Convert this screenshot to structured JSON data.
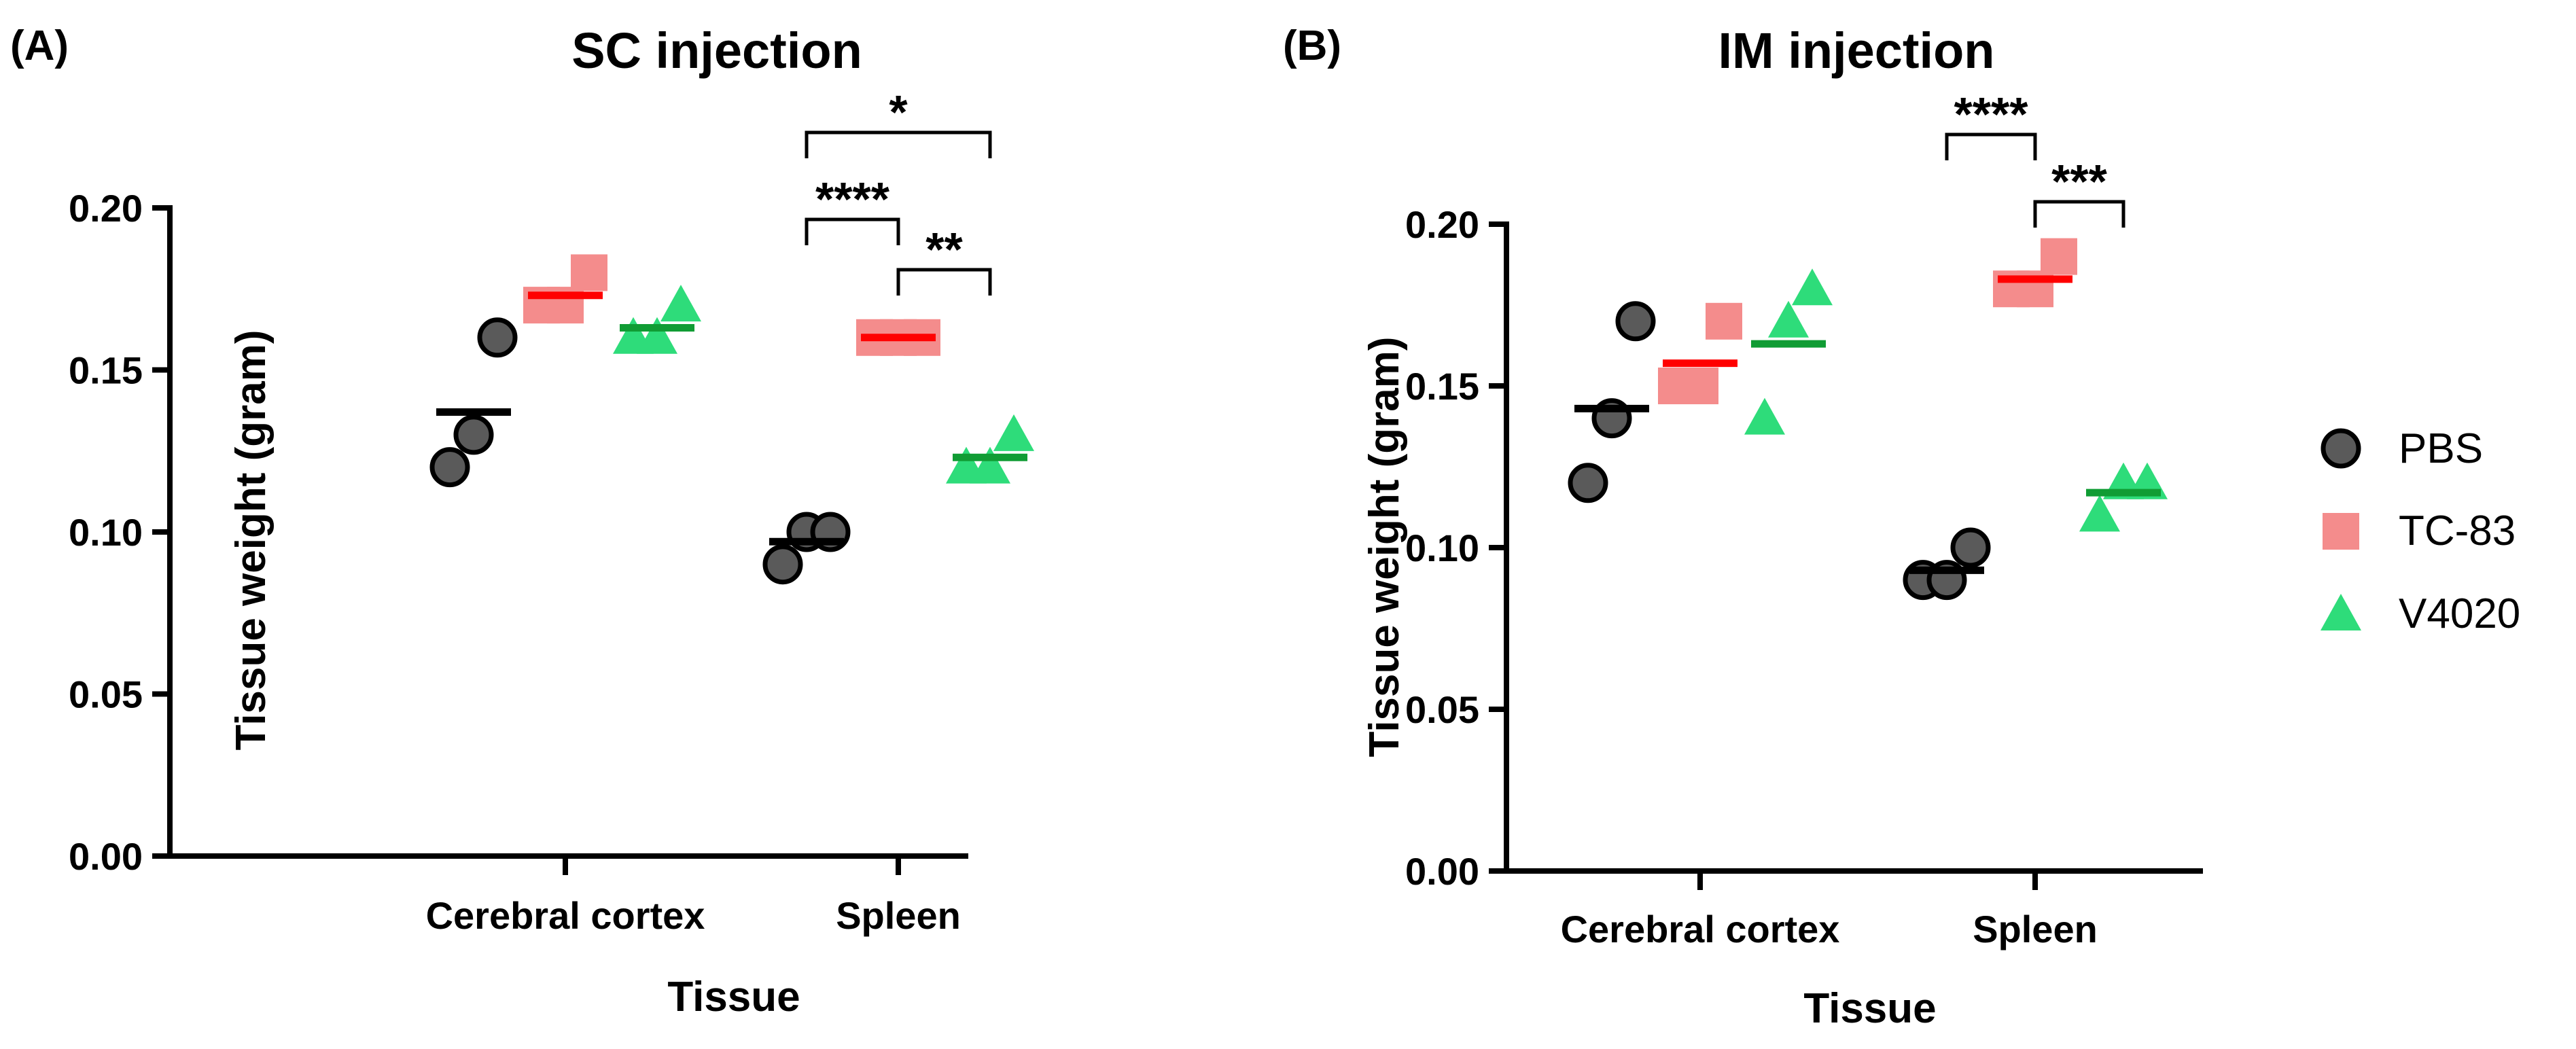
{
  "figure": {
    "legend": [
      {
        "name": "PBS",
        "marker": "circle",
        "color": "#5a5a5a",
        "mean_color": "#000000"
      },
      {
        "name": "TC-83",
        "marker": "square",
        "color": "#f48c8c",
        "mean_color": "#ff0000"
      },
      {
        "name": "V4020",
        "marker": "triangle",
        "color": "#2edc7a",
        "mean_color": "#109c34"
      }
    ]
  },
  "chart_data": [
    {
      "type": "scatter",
      "panel_label": "(A)",
      "title": "SC injection",
      "xlabel": "Tissue",
      "ylabel": "Tissue weight (gram)",
      "categories": [
        "Cerebral cortex",
        "Spleen"
      ],
      "ylim": [
        0,
        0.2
      ],
      "yticks": [
        "0.00",
        "0.05",
        "0.10",
        "0.15",
        "0.20"
      ],
      "series": [
        {
          "name": "PBS",
          "values": [
            [
              0.12,
              0.13,
              0.16
            ],
            [
              0.09,
              0.1,
              0.1
            ]
          ],
          "means": [
            0.137,
            0.097
          ]
        },
        {
          "name": "TC-83",
          "values": [
            [
              0.17,
              0.17,
              0.18
            ],
            [
              0.16,
              0.16,
              0.16
            ]
          ],
          "means": [
            0.173,
            0.16
          ]
        },
        {
          "name": "V4020",
          "values": [
            [
              0.16,
              0.16,
              0.17
            ],
            [
              0.12,
              0.12,
              0.13
            ]
          ],
          "means": [
            0.163,
            0.123
          ]
        }
      ],
      "significance": [
        {
          "category": "Spleen",
          "from": "PBS",
          "to": "V4020",
          "label": "*",
          "level": 3
        },
        {
          "category": "Spleen",
          "from": "PBS",
          "to": "TC-83",
          "label": "****",
          "level": 2
        },
        {
          "category": "Spleen",
          "from": "TC-83",
          "to": "V4020",
          "label": "**",
          "level": 1
        }
      ]
    },
    {
      "type": "scatter",
      "panel_label": "(B)",
      "title": "IM injection",
      "xlabel": "Tissue",
      "ylabel": "Tissue weight (gram)",
      "categories": [
        "Cerebral cortex",
        "Spleen"
      ],
      "ylim": [
        0,
        0.2
      ],
      "yticks": [
        "0.00",
        "0.05",
        "0.10",
        "0.15",
        "0.20"
      ],
      "series": [
        {
          "name": "PBS",
          "values": [
            [
              0.12,
              0.14,
              0.17
            ],
            [
              0.09,
              0.09,
              0.1
            ]
          ],
          "means": [
            0.143,
            0.093
          ]
        },
        {
          "name": "TC-83",
          "values": [
            [
              0.15,
              0.15,
              0.17
            ],
            [
              0.18,
              0.18,
              0.19
            ]
          ],
          "means": [
            0.157,
            0.183
          ]
        },
        {
          "name": "V4020",
          "values": [
            [
              0.14,
              0.17,
              0.18
            ],
            [
              0.11,
              0.12,
              0.12
            ]
          ],
          "means": [
            0.163,
            0.117
          ]
        }
      ],
      "significance": [
        {
          "category": "Spleen",
          "from": "PBS",
          "to": "TC-83",
          "label": "****",
          "level": 2
        },
        {
          "category": "Spleen",
          "from": "TC-83",
          "to": "V4020",
          "label": "***",
          "level": 1
        }
      ]
    }
  ]
}
